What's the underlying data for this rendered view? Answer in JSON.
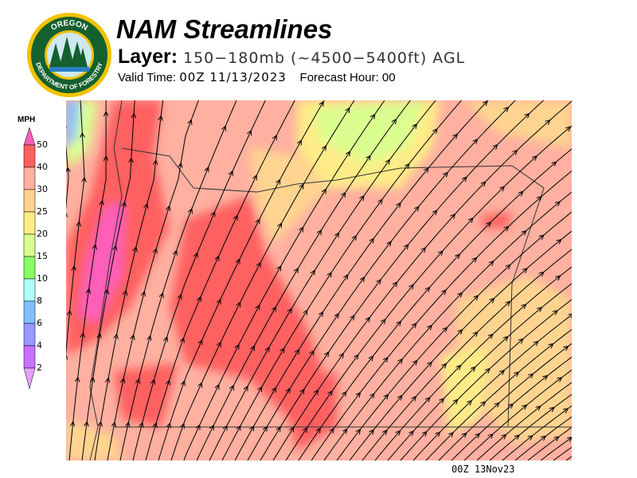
{
  "header": {
    "title": "NAM Streamlines",
    "layer_label": "Layer:",
    "layer_value": "150−180mb (~4500−5400ft) AGL",
    "valid_label": "Valid Time:",
    "valid_value": "00Z 11/13/2023",
    "forecast_label": "Forecast Hour:",
    "forecast_value": "00"
  },
  "logo": {
    "top_text": "OREGON",
    "bottom_text": "DEPARTMENT OF FORESTRY"
  },
  "legend": {
    "unit": "MPH",
    "levels": [
      "50",
      "40",
      "30",
      "25",
      "20",
      "15",
      "10",
      "8",
      "6",
      "4",
      "2"
    ],
    "colors": [
      "#ff5fb8",
      "#ff6060",
      "#ffb0a0",
      "#ffd490",
      "#ffec88",
      "#daff90",
      "#88ff66",
      "#b0ffff",
      "#80c0ff",
      "#9898ff",
      "#c870ff",
      "#e8a0ff"
    ]
  },
  "footer": {
    "timestamp": "00Z 13Nov23"
  }
}
